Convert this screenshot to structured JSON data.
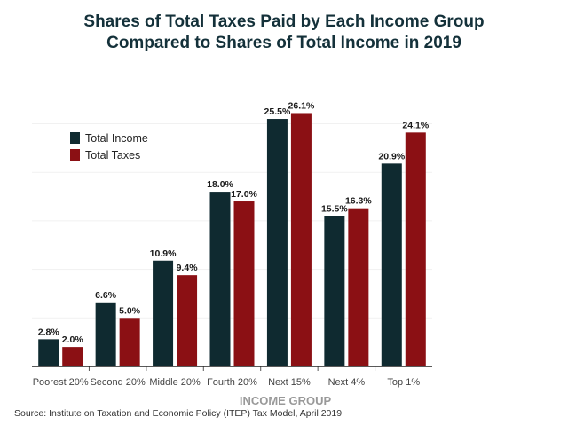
{
  "chart_data": {
    "type": "bar",
    "title": "Shares of Total Taxes Paid by Each Income Group",
    "subtitle": "Compared to Shares of Total Income in 2019",
    "xlabel": "INCOME GROUP",
    "ylabel": "",
    "ylim": [
      0,
      30
    ],
    "grid": true,
    "legend_position": "top-left",
    "categories": [
      "Poorest 20%",
      "Second 20%",
      "Middle 20%",
      "Fourth 20%",
      "Next 15%",
      "Next 4%",
      "Top 1%"
    ],
    "series": [
      {
        "name": "Total Income",
        "color": "#0f2a30",
        "values": [
          2.8,
          6.6,
          10.9,
          18.0,
          25.5,
          15.5,
          20.9
        ],
        "labels": [
          "2.8%",
          "6.6%",
          "10.9%",
          "18.0%",
          "25.5%",
          "15.5%",
          "20.9%"
        ]
      },
      {
        "name": "Total Taxes",
        "color": "#8b1014",
        "values": [
          2.0,
          5.0,
          9.4,
          17.0,
          26.1,
          16.3,
          24.1
        ],
        "labels": [
          "2.0%",
          "5.0%",
          "9.4%",
          "17.0%",
          "26.1%",
          "16.3%",
          "24.1%"
        ]
      }
    ],
    "source": "Source: Institute on Taxation and Economic Policy (ITEP) Tax Model, April 2019"
  }
}
